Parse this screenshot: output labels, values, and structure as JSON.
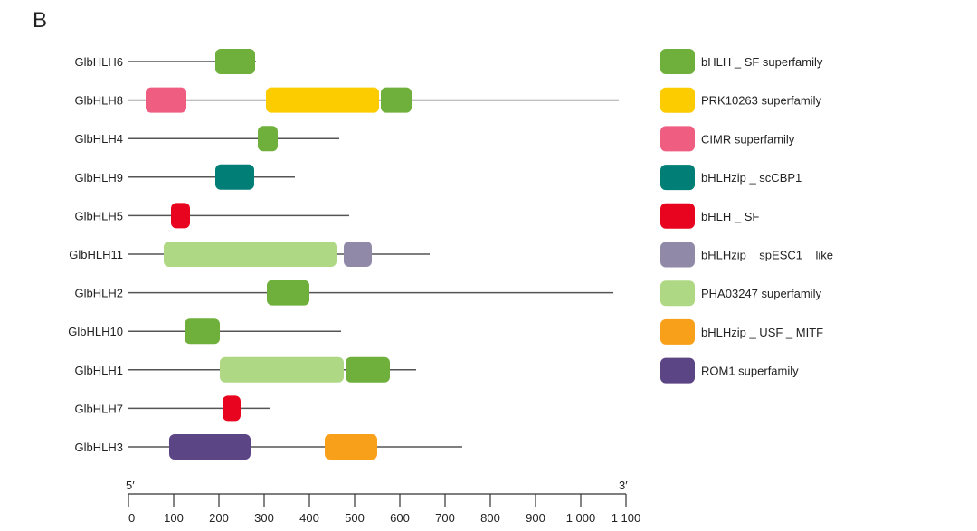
{
  "panel_label": "B",
  "axis": {
    "left_label": "5′",
    "right_label": "3′",
    "range": [
      0,
      1100
    ],
    "ticks": [
      {
        "value": 0,
        "label": "0"
      },
      {
        "value": 100,
        "label": "100"
      },
      {
        "value": 200,
        "label": "200"
      },
      {
        "value": 300,
        "label": "300"
      },
      {
        "value": 400,
        "label": "400"
      },
      {
        "value": 500,
        "label": "500"
      },
      {
        "value": 600,
        "label": "600"
      },
      {
        "value": 700,
        "label": "700"
      },
      {
        "value": 800,
        "label": "800"
      },
      {
        "value": 900,
        "label": "900"
      },
      {
        "value": 1000,
        "label": "1 000"
      },
      {
        "value": 1100,
        "label": "1 100"
      }
    ]
  },
  "domain_types": [
    {
      "key": "bhlh_sf_super",
      "label": "bHLH _ SF  superfamily",
      "color": "#6fb03c"
    },
    {
      "key": "prk10263",
      "label": "PRK10263  superfamily",
      "color": "#fccc00"
    },
    {
      "key": "cimr",
      "label": "CIMR  superfamily",
      "color": "#ef5e80"
    },
    {
      "key": "sccbp1",
      "label": "bHLHzip _ scCBP1",
      "color": "#017f76"
    },
    {
      "key": "bhlh_sf",
      "label": "bHLH _ SF",
      "color": "#e8041e"
    },
    {
      "key": "spesc1",
      "label": "bHLHzip _ spESC1 _ like",
      "color": "#9089a8"
    },
    {
      "key": "pha03247",
      "label": "PHA03247  superfamily",
      "color": "#aed884"
    },
    {
      "key": "usf_mitf",
      "label": "bHLHzip _ USF    _ MITF",
      "color": "#f8a01a"
    },
    {
      "key": "rom1",
      "label": "ROM1  superfamily",
      "color": "#5b4585"
    }
  ],
  "proteins": [
    {
      "name": "GlbHLH6",
      "length": 282,
      "domains": [
        {
          "type": "bhlh_sf_super",
          "start": 192,
          "end": 280
        }
      ]
    },
    {
      "name": "GlbHLH8",
      "length": 1084,
      "domains": [
        {
          "type": "cimr",
          "start": 38,
          "end": 128
        },
        {
          "type": "prk10263",
          "start": 304,
          "end": 554
        },
        {
          "type": "bhlh_sf_super",
          "start": 558,
          "end": 626
        }
      ]
    },
    {
      "name": "GlbHLH4",
      "length": 466,
      "domains": [
        {
          "type": "bhlh_sf_super",
          "start": 286,
          "end": 330
        }
      ]
    },
    {
      "name": "GlbHLH9",
      "length": 368,
      "domains": [
        {
          "type": "sccbp1",
          "start": 192,
          "end": 278
        }
      ]
    },
    {
      "name": "GlbHLH5",
      "length": 488,
      "domains": [
        {
          "type": "bhlh_sf",
          "start": 94,
          "end": 136
        }
      ]
    },
    {
      "name": "GlbHLH11",
      "length": 666,
      "domains": [
        {
          "type": "pha03247",
          "start": 78,
          "end": 460
        },
        {
          "type": "spesc1",
          "start": 476,
          "end": 538
        }
      ]
    },
    {
      "name": "GlbHLH2",
      "length": 1072,
      "domains": [
        {
          "type": "bhlh_sf_super",
          "start": 306,
          "end": 400
        }
      ]
    },
    {
      "name": "GlbHLH10",
      "length": 470,
      "domains": [
        {
          "type": "bhlh_sf_super",
          "start": 124,
          "end": 202
        }
      ]
    },
    {
      "name": "GlbHLH1",
      "length": 636,
      "domains": [
        {
          "type": "pha03247",
          "start": 202,
          "end": 476
        },
        {
          "type": "bhlh_sf_super",
          "start": 480,
          "end": 578
        }
      ]
    },
    {
      "name": "GlbHLH7",
      "length": 314,
      "domains": [
        {
          "type": "bhlh_sf",
          "start": 208,
          "end": 248
        }
      ]
    },
    {
      "name": "GlbHLH3",
      "length": 738,
      "domains": [
        {
          "type": "rom1",
          "start": 90,
          "end": 270
        },
        {
          "type": "usf_mitf",
          "start": 434,
          "end": 550
        }
      ]
    }
  ]
}
